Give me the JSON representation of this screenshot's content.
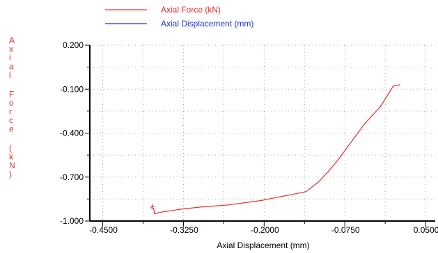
{
  "colors": {
    "force": "#e03030",
    "displacement": "#2233cc",
    "ytitle": "#e03030",
    "grid": "#8a8a8a",
    "axis": "#000000"
  },
  "chart_data": {
    "type": "line",
    "xlabel": "Axial Displacement (mm)",
    "ylabel": "A x i a l   F o r c e   ( k N )",
    "xlim": [
      -0.47,
      0.065
    ],
    "ylim": [
      -1.0,
      0.2
    ],
    "x_ticks": [
      -0.45,
      -0.325,
      -0.2,
      -0.075,
      0.05
    ],
    "x_tick_labels": [
      "-0.4500",
      "-0.3250",
      "-0.2000",
      "-0.0750",
      "0.0500"
    ],
    "y_ticks": [
      0.2,
      -0.1,
      -0.4,
      -0.7,
      -1.0
    ],
    "y_tick_labels": [
      "0.200",
      "-0.100",
      "-0.400",
      "-0.700",
      "-1.000"
    ],
    "grid": true,
    "legend_position": "top",
    "series": [
      {
        "name": "Axial Force  (kN)",
        "color": "#e03030",
        "x": [
          -0.375,
          -0.371,
          -0.37,
          -0.36,
          -0.33,
          -0.3,
          -0.255,
          -0.205,
          -0.17,
          -0.135,
          -0.115,
          -0.1,
          -0.085,
          -0.07,
          -0.045,
          -0.02,
          0.0,
          0.01
        ],
        "y": [
          -0.91,
          -0.915,
          -0.95,
          -0.94,
          -0.92,
          -0.905,
          -0.89,
          -0.86,
          -0.83,
          -0.8,
          -0.73,
          -0.66,
          -0.58,
          -0.49,
          -0.34,
          -0.22,
          -0.08,
          -0.07
        ],
        "marker": {
          "x": -0.373,
          "y": -0.9
        }
      },
      {
        "name": "Axial Displacement  (mm)",
        "color": "#2233cc",
        "x": [],
        "y": []
      }
    ]
  }
}
